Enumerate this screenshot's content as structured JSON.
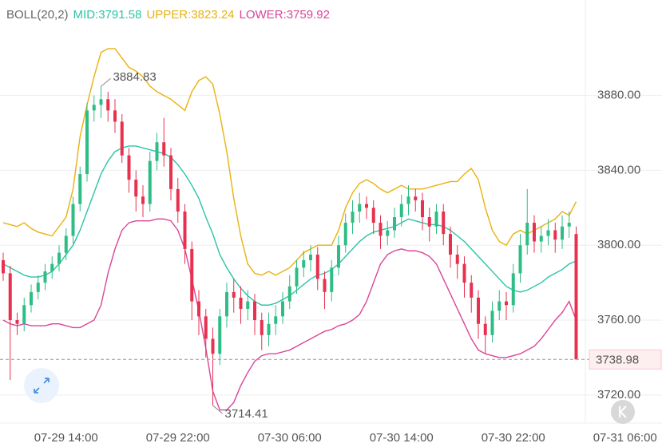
{
  "chart_data": {
    "type": "candlestick",
    "indicator": "BOLL(20,2)",
    "categories": [
      null,
      null,
      null,
      null,
      null,
      null,
      null,
      null,
      null,
      "07-29 14:00",
      null,
      null,
      null,
      null,
      null,
      null,
      null,
      null,
      null,
      null,
      null,
      null,
      null,
      null,
      null,
      "07-29 22:00",
      null,
      null,
      null,
      null,
      null,
      null,
      null,
      null,
      null,
      null,
      null,
      null,
      null,
      null,
      null,
      "07-30 06:00",
      null,
      null,
      null,
      null,
      null,
      null,
      null,
      null,
      null,
      null,
      null,
      null,
      null,
      null,
      null,
      "07-30 14:00",
      null,
      null,
      null,
      null,
      null,
      null,
      null,
      null,
      null,
      null,
      null,
      null,
      null,
      null,
      null,
      "07-30 22:00",
      null,
      null,
      null,
      null,
      null,
      null,
      null,
      null,
      null
    ],
    "x_end_label": "07-31 06:00",
    "open": [
      3792,
      3785,
      3760,
      3758,
      3768,
      3775,
      3780,
      3786,
      3790,
      3796,
      3805,
      3822,
      3838,
      3872,
      3875,
      3878,
      3872,
      3866,
      3848,
      3835,
      3826,
      3822,
      3845,
      3855,
      3848,
      3830,
      3818,
      3798,
      3770,
      3762,
      3750,
      3742,
      3762,
      3775,
      3772,
      3766,
      3770,
      3760,
      3752,
      3758,
      3762,
      3770,
      3778,
      3788,
      3792,
      3795,
      3782,
      3775,
      3788,
      3800,
      3812,
      3818,
      3822,
      3820,
      3812,
      3805,
      3808,
      3815,
      3822,
      3826,
      3824,
      3815,
      3810,
      3818,
      3806,
      3795,
      3790,
      3780,
      3772,
      3758,
      3752,
      3765,
      3770,
      3768,
      3785,
      3800,
      3812,
      3802,
      3805,
      3808,
      3803,
      3810,
      3806
    ],
    "high": [
      3796,
      3789,
      3764,
      3772,
      3779,
      3784,
      3790,
      3794,
      3800,
      3809,
      3826,
      3842,
      3876,
      3880,
      3884.83,
      3882,
      3878,
      3870,
      3852,
      3840,
      3832,
      3850,
      3860,
      3868,
      3852,
      3836,
      3822,
      3802,
      3776,
      3766,
      3756,
      3766,
      3780,
      3782,
      3778,
      3776,
      3774,
      3764,
      3764,
      3768,
      3775,
      3784,
      3792,
      3797,
      3800,
      3799,
      3786,
      3792,
      3805,
      3817,
      3824,
      3828,
      3826,
      3824,
      3816,
      3813,
      3820,
      3827,
      3832,
      3830,
      3828,
      3820,
      3822,
      3822,
      3810,
      3800,
      3794,
      3784,
      3776,
      3762,
      3770,
      3776,
      3775,
      3790,
      3806,
      3830,
      3816,
      3810,
      3814,
      3812,
      3816,
      3818,
      3810
    ],
    "low": [
      3781,
      3728,
      3752,
      3754,
      3764,
      3771,
      3776,
      3782,
      3786,
      3792,
      3801,
      3818,
      3834,
      3866,
      3868,
      3866,
      3860,
      3844,
      3828,
      3818,
      3815,
      3818,
      3840,
      3842,
      3824,
      3812,
      3790,
      3760,
      3752,
      3740,
      3714.41,
      3736,
      3756,
      3764,
      3758,
      3760,
      3752,
      3744,
      3746,
      3752,
      3758,
      3766,
      3774,
      3783,
      3786,
      3776,
      3766,
      3770,
      3784,
      3796,
      3806,
      3812,
      3814,
      3806,
      3798,
      3800,
      3804,
      3810,
      3816,
      3818,
      3808,
      3802,
      3806,
      3800,
      3788,
      3782,
      3772,
      3764,
      3750,
      3742,
      3748,
      3760,
      3760,
      3764,
      3780,
      3795,
      3796,
      3796,
      3800,
      3796,
      3798,
      3804,
      3738.98
    ],
    "close": [
      3785,
      3760,
      3758,
      3768,
      3775,
      3780,
      3786,
      3790,
      3796,
      3805,
      3822,
      3838,
      3872,
      3875,
      3878,
      3872,
      3866,
      3848,
      3835,
      3826,
      3822,
      3845,
      3855,
      3848,
      3830,
      3818,
      3798,
      3770,
      3762,
      3750,
      3742,
      3762,
      3775,
      3772,
      3766,
      3770,
      3760,
      3752,
      3758,
      3762,
      3770,
      3778,
      3788,
      3792,
      3795,
      3782,
      3775,
      3788,
      3800,
      3812,
      3818,
      3822,
      3820,
      3812,
      3805,
      3808,
      3815,
      3822,
      3826,
      3824,
      3815,
      3810,
      3818,
      3806,
      3795,
      3790,
      3780,
      3772,
      3758,
      3752,
      3765,
      3770,
      3768,
      3785,
      3800,
      3812,
      3802,
      3805,
      3808,
      3803,
      3810,
      3812,
      3738.98
    ],
    "up_color": "#2ebd85",
    "down_color": "#e8304f",
    "series": [
      {
        "name": "MID:3791.58",
        "color": "#2bc4a6",
        "values": [
          3790,
          3788,
          3786,
          3784,
          3783,
          3783,
          3784,
          3786,
          3790,
          3795,
          3800,
          3808,
          3818,
          3828,
          3838,
          3845,
          3850,
          3852,
          3853,
          3853,
          3852,
          3851,
          3850,
          3849,
          3847,
          3843,
          3838,
          3832,
          3825,
          3815,
          3806,
          3795,
          3788,
          3782,
          3777,
          3773,
          3770,
          3768,
          3768,
          3769,
          3771,
          3773,
          3776,
          3779,
          3782,
          3784,
          3785,
          3787,
          3790,
          3794,
          3798,
          3802,
          3805,
          3807,
          3808,
          3809,
          3810,
          3812,
          3814,
          3813,
          3812,
          3811,
          3811,
          3810,
          3808,
          3805,
          3802,
          3798,
          3794,
          3790,
          3786,
          3782,
          3778,
          3776,
          3775,
          3776,
          3778,
          3780,
          3783,
          3785,
          3787,
          3790,
          3791.58
        ]
      },
      {
        "name": "UPPER:3823.24",
        "color": "#e9b10e",
        "values": [
          3812,
          3811,
          3810,
          3812,
          3809,
          3807,
          3806,
          3805,
          3810,
          3815,
          3830,
          3858,
          3875,
          3890,
          3903,
          3905,
          3905,
          3900,
          3895,
          3893,
          3890,
          3885,
          3882,
          3880,
          3878,
          3875,
          3872,
          3882,
          3888,
          3890,
          3886,
          3870,
          3850,
          3825,
          3805,
          3790,
          3785,
          3784,
          3786,
          3784,
          3786,
          3788,
          3792,
          3796,
          3798,
          3800,
          3800,
          3800,
          3808,
          3820,
          3828,
          3833,
          3835,
          3833,
          3830,
          3828,
          3830,
          3832,
          3830,
          3830,
          3830,
          3831,
          3832,
          3833,
          3834,
          3834,
          3838,
          3841,
          3835,
          3820,
          3808,
          3802,
          3800,
          3806,
          3808,
          3806,
          3808,
          3810,
          3812,
          3814,
          3818,
          3816,
          3823.24
        ]
      },
      {
        "name": "LOWER:3759.92",
        "color": "#d9459a",
        "values": [
          3760,
          3758,
          3757,
          3758,
          3757,
          3757,
          3757,
          3758,
          3758,
          3757,
          3756,
          3756,
          3758,
          3760,
          3768,
          3785,
          3798,
          3808,
          3812,
          3813,
          3813,
          3813,
          3814,
          3814,
          3813,
          3808,
          3798,
          3782,
          3765,
          3745,
          3722,
          3712,
          3712,
          3716,
          3725,
          3732,
          3738,
          3741,
          3742,
          3742,
          3743,
          3744,
          3746,
          3748,
          3750,
          3752,
          3754,
          3755,
          3757,
          3758,
          3760,
          3763,
          3770,
          3780,
          3790,
          3795,
          3797,
          3798,
          3797,
          3797,
          3796,
          3794,
          3790,
          3782,
          3774,
          3766,
          3758,
          3750,
          3744,
          3742,
          3741,
          3740,
          3740,
          3741,
          3742,
          3744,
          3746,
          3750,
          3755,
          3760,
          3764,
          3770,
          3759.92
        ]
      }
    ],
    "max_label": 3884.83,
    "min_label": 3714.41,
    "ylim": [
      3705,
      3931
    ],
    "yticks": [
      {
        "value": 3720,
        "label": "3720.00"
      },
      {
        "value": 3760,
        "label": "3760.00"
      },
      {
        "value": 3800,
        "label": "3800.00"
      },
      {
        "value": 3840,
        "label": "3840.00"
      },
      {
        "value": 3880,
        "label": "3880.00"
      }
    ],
    "grid": true
  }
}
